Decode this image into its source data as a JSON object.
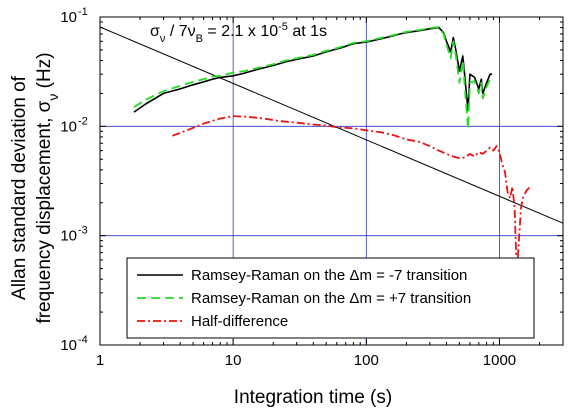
{
  "chart_data": {
    "type": "line",
    "xlabel": "Integration time (s)",
    "ylabel_line1": "Allan standard deviation of",
    "ylabel_line2": "frequency displacement, σ",
    "ylabel_sub": "ν",
    "ylabel_unit": " (Hz)",
    "xscale": "log",
    "yscale": "log",
    "xlim": [
      1,
      3000
    ],
    "ylim": [
      0.0001,
      0.1
    ],
    "grid": true,
    "grid_color": "#3333cc",
    "x_ticks": [
      {
        "value": 1,
        "label": "1"
      },
      {
        "value": 10,
        "label": "10"
      },
      {
        "value": 100,
        "label": "100"
      },
      {
        "value": 1000,
        "label": "1000"
      }
    ],
    "y_ticks": [
      {
        "value": 0.1,
        "base": "10",
        "exp": "-1"
      },
      {
        "value": 0.01,
        "base": "10",
        "exp": "-2"
      },
      {
        "value": 0.001,
        "base": "10",
        "exp": "-3"
      },
      {
        "value": 0.0001,
        "base": "10",
        "exp": "-4"
      }
    ],
    "annotation": {
      "sigma": "σ",
      "sigma_sub": "ν",
      "mid": " / 7ν",
      "mid_sub": "B",
      "value": " = 2.1 x 10",
      "exp": "-5",
      "tail": " at 1s"
    },
    "reference_line": {
      "x": [
        1,
        3000
      ],
      "y": [
        0.081,
        0.0013
      ],
      "color": "#000000"
    },
    "legend_position": "bottom-left",
    "legend": [
      {
        "pre": "Ramsey-Raman on the ",
        "delta": "Δ",
        "post": "m = -7 transition",
        "color": "#000000",
        "dash": "none"
      },
      {
        "pre": "Ramsey-Raman on the ",
        "delta": "Δ",
        "post": "m = +7 transition",
        "color": "#22dd22",
        "dash": "9,5"
      },
      {
        "pre": "Half-difference",
        "delta": "",
        "post": "",
        "color": "#ee1111",
        "dash": "8,3,2,3"
      }
    ],
    "series": [
      {
        "name": "Ramsey-Raman on the Δm = -7 transition",
        "color": "#000000",
        "x": [
          1.8,
          2.2,
          3,
          4,
          5,
          6,
          7,
          8,
          10,
          12,
          15,
          20,
          25,
          30,
          40,
          50,
          60,
          70,
          80,
          100,
          120,
          150,
          180,
          200,
          250,
          300,
          350,
          380,
          400,
          430,
          450,
          470,
          500,
          530,
          550,
          580,
          600,
          650,
          700,
          730,
          750,
          800,
          850,
          880
        ],
        "y": [
          0.0135,
          0.016,
          0.02,
          0.022,
          0.024,
          0.0255,
          0.027,
          0.028,
          0.029,
          0.0305,
          0.033,
          0.036,
          0.039,
          0.041,
          0.044,
          0.048,
          0.051,
          0.054,
          0.057,
          0.059,
          0.062,
          0.066,
          0.07,
          0.072,
          0.075,
          0.078,
          0.08,
          0.072,
          0.06,
          0.048,
          0.065,
          0.05,
          0.032,
          0.044,
          0.028,
          0.014,
          0.03,
          0.028,
          0.022,
          0.027,
          0.02,
          0.025,
          0.03,
          0.03
        ]
      },
      {
        "name": "Ramsey-Raman on the Δm = +7 transition",
        "color": "#22dd22",
        "x": [
          1.8,
          2.2,
          3,
          4,
          5,
          6,
          7,
          8,
          10,
          12,
          15,
          20,
          25,
          30,
          40,
          50,
          60,
          70,
          80,
          100,
          120,
          150,
          180,
          200,
          250,
          300,
          350,
          380,
          400,
          430,
          450,
          470,
          500,
          530,
          550,
          580,
          600,
          650,
          700,
          730,
          750,
          800,
          850,
          880
        ],
        "y": [
          0.015,
          0.0175,
          0.021,
          0.0235,
          0.0255,
          0.027,
          0.0285,
          0.029,
          0.031,
          0.032,
          0.034,
          0.037,
          0.04,
          0.042,
          0.045,
          0.049,
          0.052,
          0.055,
          0.058,
          0.06,
          0.063,
          0.067,
          0.071,
          0.073,
          0.076,
          0.079,
          0.081,
          0.07,
          0.056,
          0.042,
          0.06,
          0.045,
          0.025,
          0.04,
          0.022,
          0.0095,
          0.025,
          0.026,
          0.02,
          0.025,
          0.018,
          0.023,
          0.027,
          0.028
        ]
      },
      {
        "name": "Half-difference",
        "color": "#ee1111",
        "x": [
          3.5,
          4.5,
          6,
          8,
          10,
          13,
          17,
          22,
          30,
          40,
          50,
          60,
          80,
          100,
          130,
          160,
          200,
          250,
          300,
          350,
          400,
          450,
          500,
          550,
          600,
          650,
          700,
          750,
          800,
          850,
          900,
          950,
          1000,
          1050,
          1100,
          1150,
          1200,
          1250,
          1300,
          1350,
          1400,
          1450,
          1500,
          1600,
          1700
        ],
        "y": [
          0.0082,
          0.0092,
          0.0106,
          0.0118,
          0.0124,
          0.0122,
          0.0118,
          0.0112,
          0.0108,
          0.0104,
          0.0102,
          0.0098,
          0.0096,
          0.0092,
          0.0088,
          0.0083,
          0.0076,
          0.0072,
          0.0066,
          0.006,
          0.0056,
          0.0053,
          0.0051,
          0.0052,
          0.0056,
          0.0053,
          0.0058,
          0.0056,
          0.006,
          0.0064,
          0.006,
          0.0066,
          0.0058,
          0.0045,
          0.0038,
          0.0025,
          0.0022,
          0.0028,
          0.0018,
          0.00045,
          0.0009,
          0.0018,
          0.0022,
          0.0026,
          0.0028
        ]
      }
    ]
  }
}
